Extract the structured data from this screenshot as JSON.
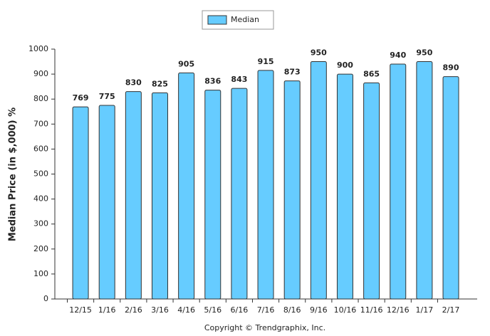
{
  "chart_data": {
    "type": "bar",
    "y_label": "Median Price (in $,000) %",
    "footer": "Copyright © Trendgraphix, Inc.",
    "categories": [
      "12/15",
      "1/16",
      "2/16",
      "3/16",
      "4/16",
      "5/16",
      "6/16",
      "7/16",
      "8/16",
      "9/16",
      "10/16",
      "11/16",
      "12/16",
      "1/17",
      "2/17"
    ],
    "series": [
      {
        "name": "Median",
        "color": "#66ccff",
        "values": [
          769,
          775,
          830,
          825,
          905,
          836,
          843,
          915,
          873,
          950,
          900,
          865,
          940,
          950,
          890
        ]
      }
    ],
    "ylim": [
      0,
      1000
    ],
    "yticks": [
      0,
      100,
      200,
      300,
      400,
      500,
      600,
      700,
      800,
      900,
      1000
    ],
    "grid": false
  }
}
